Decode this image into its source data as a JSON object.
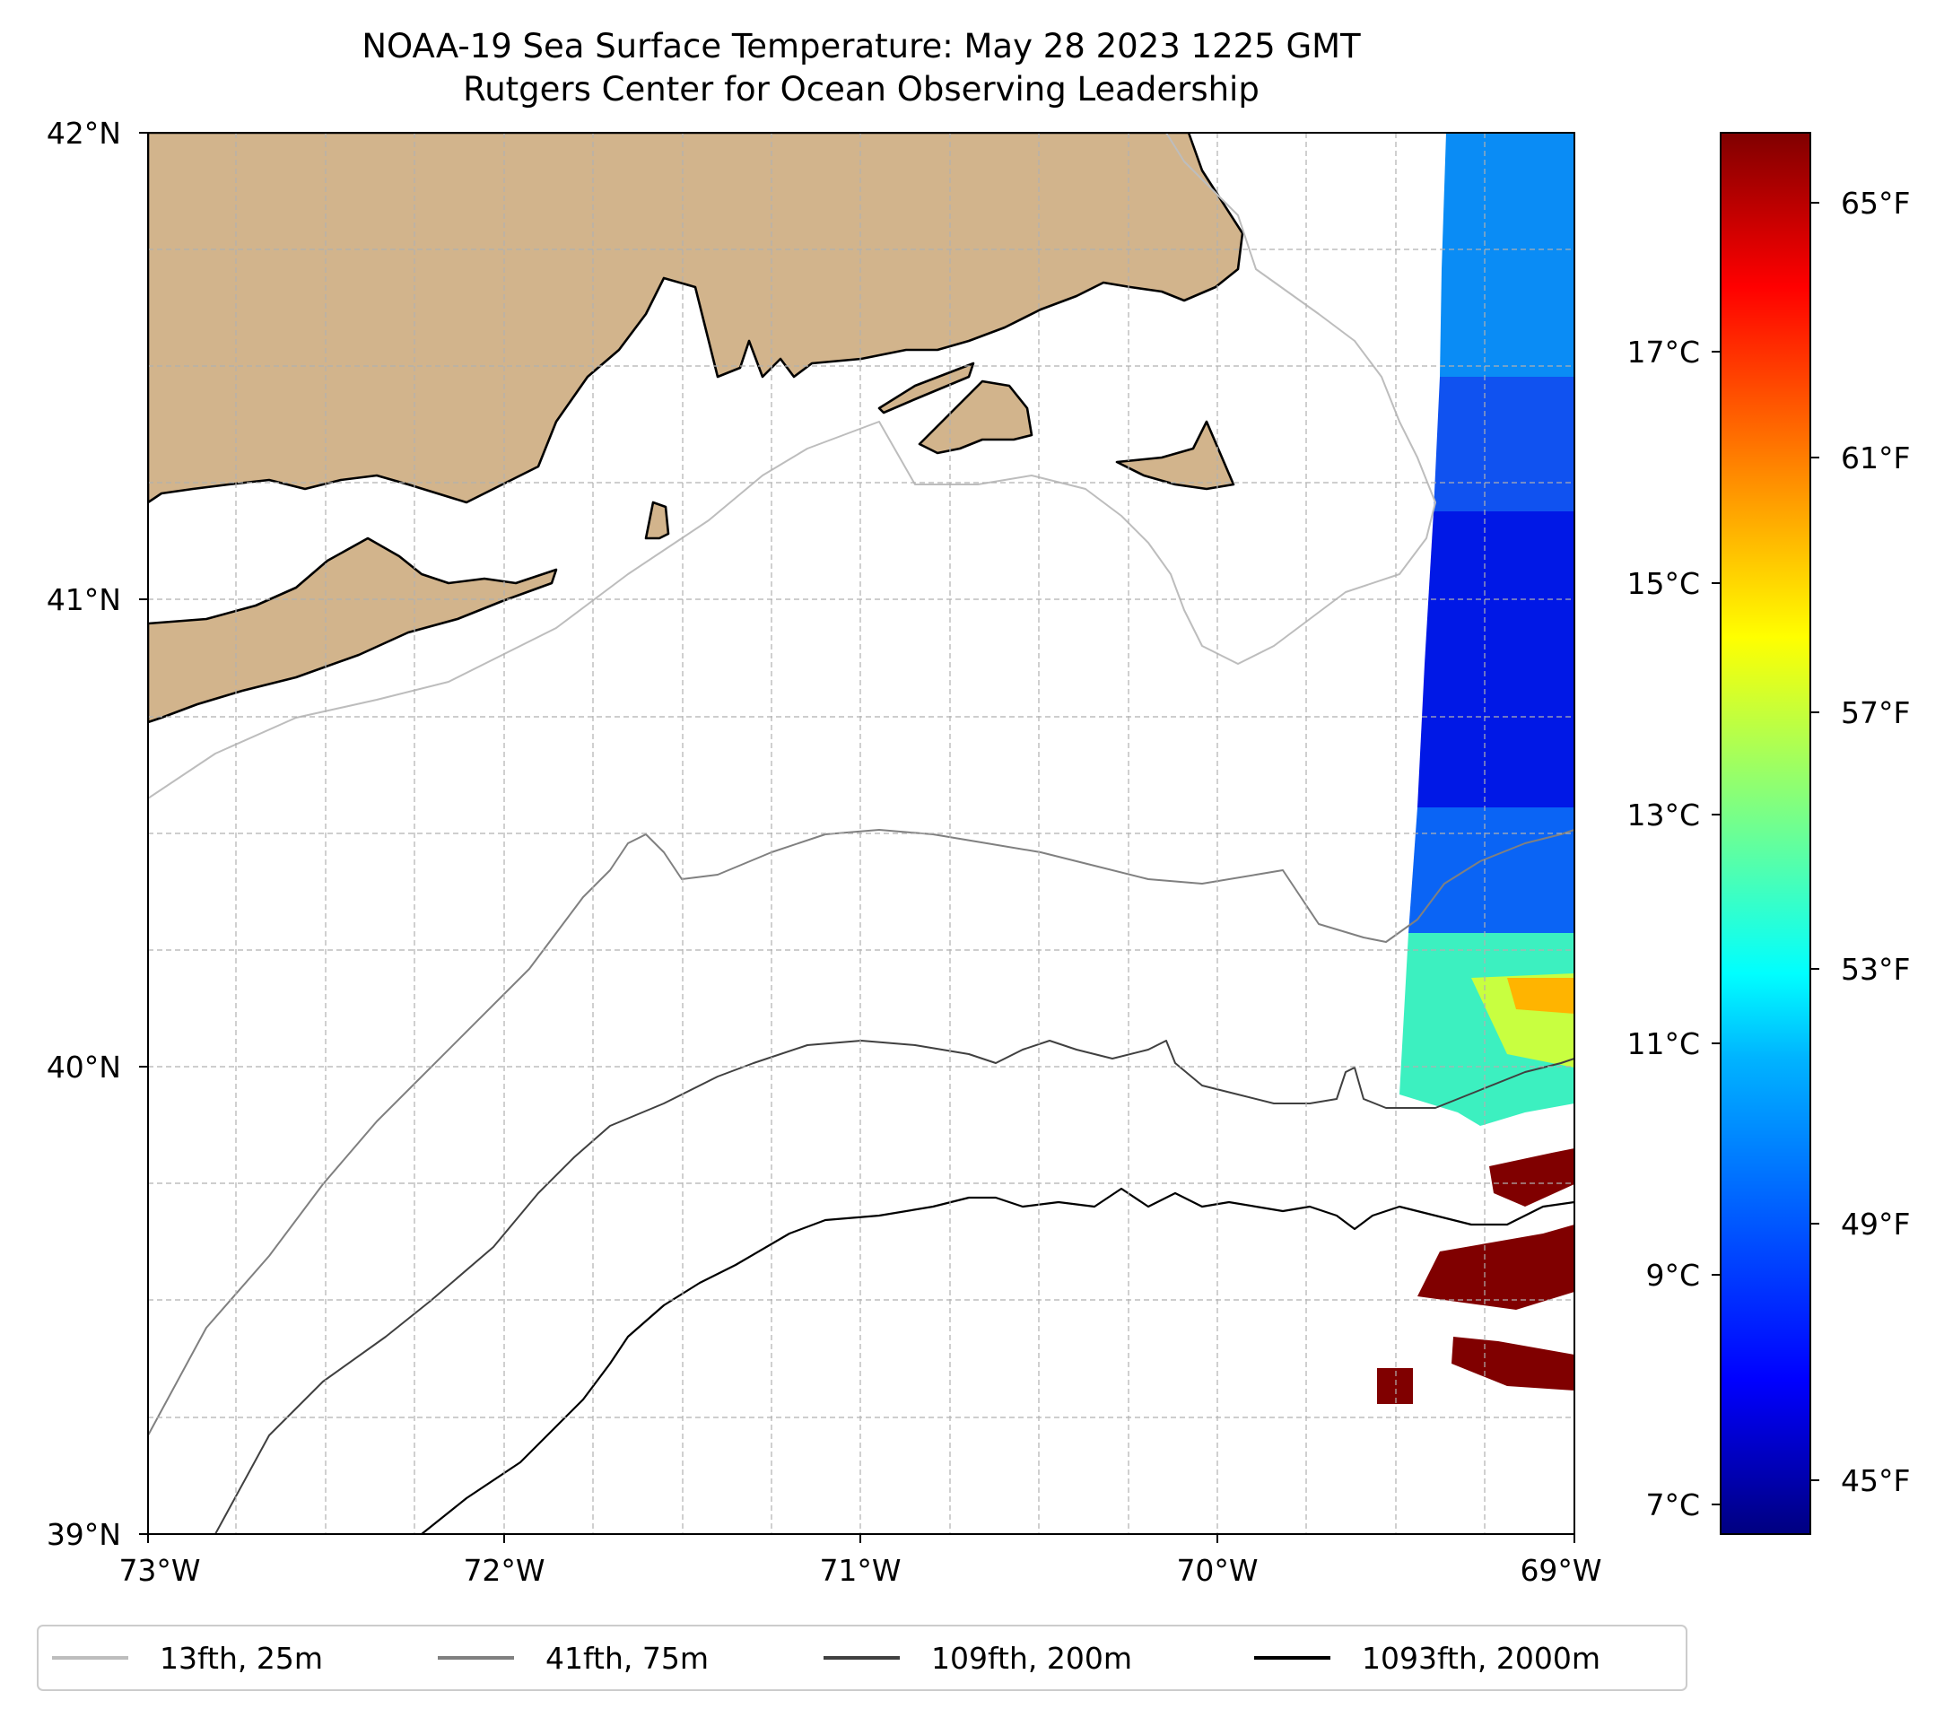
{
  "title": {
    "line1": "NOAA-19 Sea Surface Temperature: May 28 2023 1225 GMT",
    "line2": "Rutgers Center for Ocean Observing Leadership"
  },
  "map": {
    "lon_range": [
      -73,
      -69
    ],
    "lat_range": [
      39,
      42
    ],
    "gridlines": true,
    "x_tick_labels": [
      "73°W",
      "72°W",
      "71°W",
      "70°W",
      "69°W"
    ],
    "y_tick_labels": [
      "39°N",
      "40°N",
      "41°N",
      "42°N"
    ],
    "land_color": "#d2b48c",
    "sst_data_extent_lon": [
      -69.5,
      -69
    ],
    "sst_values_f": {
      "north_near_gulf_of_maine": "48-50",
      "east_of_nantucket": "45-47",
      "shelf_near_40N": "53-58",
      "offshore_gulf_stream_patches": "66+"
    }
  },
  "colorbar": {
    "colormap": "jet",
    "celsius_labels": [
      "17°C",
      "15°C",
      "13°C",
      "11°C",
      "9°C",
      "7°C"
    ],
    "fahrenheit_labels": [
      "65°F",
      "61°F",
      "57°F",
      "53°F",
      "49°F",
      "45°F"
    ],
    "colors": [
      "#000080",
      "#0000ff",
      "#0080ff",
      "#00ffff",
      "#80ff80",
      "#ffff00",
      "#ff8000",
      "#ff0000",
      "#800000"
    ]
  },
  "legend": {
    "position": "bottom",
    "items": [
      {
        "label": "13fth, 25m",
        "color": "#bdbdbd"
      },
      {
        "label": "41fth, 75m",
        "color": "#808080"
      },
      {
        "label": "109fth, 200m",
        "color": "#404040"
      },
      {
        "label": "1093fth, 2000m",
        "color": "#000000"
      }
    ]
  }
}
